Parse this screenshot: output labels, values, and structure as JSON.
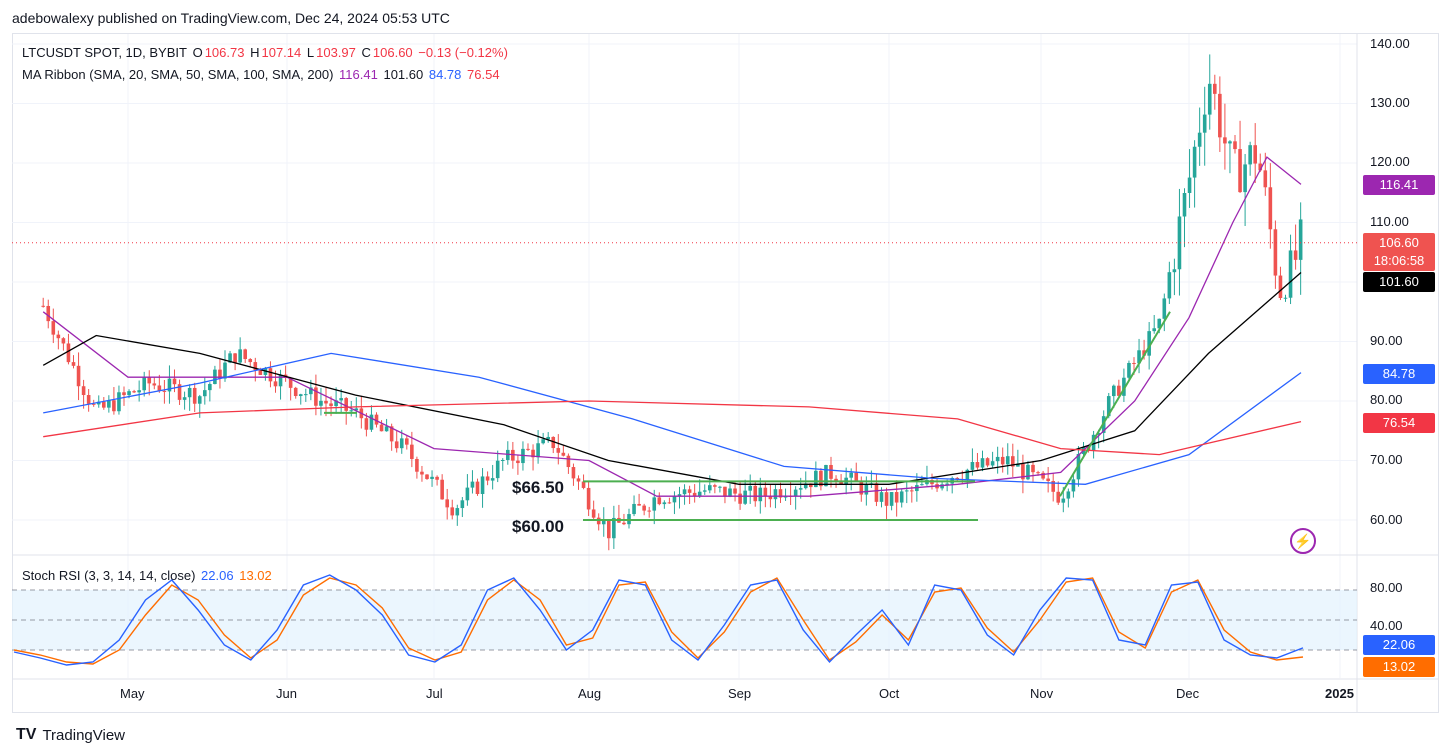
{
  "header": {
    "publisher": "adebowalexy published on TradingView.com, Dec 24, 2024 05:53 UTC"
  },
  "legend": {
    "symbol": "LTCUSDT SPOT, 1D, BYBIT",
    "open_label": "O",
    "open": "106.73",
    "high_label": "H",
    "high": "107.14",
    "low_label": "L",
    "low": "103.97",
    "close_label": "C",
    "close": "106.60",
    "change": "−0.13 (−0.12%)",
    "ma_label": "MA Ribbon (SMA, 20, SMA, 50, SMA, 100, SMA, 200)",
    "ma20": "116.41",
    "ma50": "101.60",
    "ma100": "84.78",
    "ma200": "76.54",
    "stoch_label": "Stoch RSI (3, 3, 14, 14, close)",
    "stoch_k": "22.06",
    "stoch_d": "13.02"
  },
  "price_tags": {
    "last": "106.60",
    "countdown": "18:06:58",
    "ma20": "116.41",
    "ma50": "101.60",
    "ma100": "84.78",
    "ma200": "76.54",
    "stoch_k": "22.06",
    "stoch_d": "13.02"
  },
  "annotations": {
    "level1": "$66.50",
    "level2": "$60.00"
  },
  "colors": {
    "up": "#26a69a",
    "down": "#ef5350",
    "ma20": "#9c27b0",
    "ma50": "#000000",
    "ma100": "#2962ff",
    "ma200": "#f23645",
    "stochK": "#2962ff",
    "stochD": "#ff6d00",
    "support": "#4caf50"
  },
  "brand": "TradingView",
  "chart_data": [
    {
      "type": "candlestick",
      "title": "LTCUSDT SPOT, 1D, BYBIT",
      "ylim": [
        55,
        142
      ],
      "y_ticks": [
        "140.00",
        "130.00",
        "120.00",
        "110.00",
        "90.00",
        "80.00",
        "70.00",
        "60.00"
      ],
      "x_ticks": [
        "May",
        "Jun",
        "Jul",
        "Aug",
        "Sep",
        "Oct",
        "Nov",
        "Dec",
        "2025"
      ],
      "close_path": [
        {
          "x": "Apr 15",
          "y": 96
        },
        {
          "x": "Apr 25",
          "y": 78
        },
        {
          "x": "May 5",
          "y": 83
        },
        {
          "x": "May 15",
          "y": 81
        },
        {
          "x": "May 22",
          "y": 88
        },
        {
          "x": "Jun 1",
          "y": 83
        },
        {
          "x": "Jun 8",
          "y": 80
        },
        {
          "x": "Jun 15",
          "y": 78
        },
        {
          "x": "Jun 25",
          "y": 72
        },
        {
          "x": "Jul 5",
          "y": 62
        },
        {
          "x": "Jul 15",
          "y": 70
        },
        {
          "x": "Jul 25",
          "y": 73
        },
        {
          "x": "Aug 5",
          "y": 58
        },
        {
          "x": "Aug 15",
          "y": 64
        },
        {
          "x": "Aug 25",
          "y": 65
        },
        {
          "x": "Sep 5",
          "y": 64
        },
        {
          "x": "Sep 20",
          "y": 68
        },
        {
          "x": "Oct 1",
          "y": 63
        },
        {
          "x": "Oct 15",
          "y": 68
        },
        {
          "x": "Oct 25",
          "y": 70
        },
        {
          "x": "Nov 5",
          "y": 64
        },
        {
          "x": "Nov 15",
          "y": 80
        },
        {
          "x": "Nov 25",
          "y": 93
        },
        {
          "x": "Dec 1",
          "y": 117
        },
        {
          "x": "Dec 5",
          "y": 135
        },
        {
          "x": "Dec 10",
          "y": 118
        },
        {
          "x": "Dec 15",
          "y": 122
        },
        {
          "x": "Dec 20",
          "y": 97
        },
        {
          "x": "Dec 24",
          "y": 106.6
        }
      ],
      "series": [
        {
          "name": "SMA 20",
          "values": [
            {
              "x": "Apr 15",
              "y": 95
            },
            {
              "x": "May 1",
              "y": 84
            },
            {
              "x": "Jun 1",
              "y": 84
            },
            {
              "x": "Jul 1",
              "y": 72
            },
            {
              "x": "Aug 1",
              "y": 70
            },
            {
              "x": "Aug 15",
              "y": 64
            },
            {
              "x": "Sep 15",
              "y": 64
            },
            {
              "x": "Oct 15",
              "y": 66
            },
            {
              "x": "Nov 5",
              "y": 68
            },
            {
              "x": "Nov 20",
              "y": 80
            },
            {
              "x": "Dec 1",
              "y": 94
            },
            {
              "x": "Dec 10",
              "y": 110
            },
            {
              "x": "Dec 17",
              "y": 121
            },
            {
              "x": "Dec 24",
              "y": 116.41
            }
          ]
        },
        {
          "name": "SMA 50",
          "values": [
            {
              "x": "Apr 15",
              "y": 86
            },
            {
              "x": "Apr 25",
              "y": 91
            },
            {
              "x": "May 15",
              "y": 88
            },
            {
              "x": "Jun 15",
              "y": 81
            },
            {
              "x": "Jul 15",
              "y": 76
            },
            {
              "x": "Aug 5",
              "y": 70
            },
            {
              "x": "Sep 1",
              "y": 66
            },
            {
              "x": "Oct 1",
              "y": 66
            },
            {
              "x": "Nov 1",
              "y": 70
            },
            {
              "x": "Nov 20",
              "y": 75
            },
            {
              "x": "Dec 5",
              "y": 88
            },
            {
              "x": "Dec 24",
              "y": 101.6
            }
          ]
        },
        {
          "name": "SMA 100",
          "values": [
            {
              "x": "Apr 15",
              "y": 78
            },
            {
              "x": "May 15",
              "y": 83
            },
            {
              "x": "Jun 10",
              "y": 88
            },
            {
              "x": "Jul 10",
              "y": 84
            },
            {
              "x": "Aug 10",
              "y": 77
            },
            {
              "x": "Sep 10",
              "y": 69
            },
            {
              "x": "Oct 10",
              "y": 67
            },
            {
              "x": "Nov 10",
              "y": 66
            },
            {
              "x": "Dec 1",
              "y": 71
            },
            {
              "x": "Dec 24",
              "y": 84.78
            }
          ]
        },
        {
          "name": "SMA 200",
          "values": [
            {
              "x": "Apr 15",
              "y": 74
            },
            {
              "x": "May 15",
              "y": 78
            },
            {
              "x": "Jun 15",
              "y": 79
            },
            {
              "x": "Aug 1",
              "y": 80
            },
            {
              "x": "Sep 15",
              "y": 79
            },
            {
              "x": "Oct 15",
              "y": 77
            },
            {
              "x": "Nov 5",
              "y": 72
            },
            {
              "x": "Nov 25",
              "y": 71
            },
            {
              "x": "Dec 24",
              "y": 76.54
            }
          ]
        }
      ],
      "support_levels": [
        66.5,
        60.0
      ]
    },
    {
      "type": "line",
      "title": "Stoch RSI (3, 3, 14, 14, close)",
      "ylim": [
        0,
        100
      ],
      "y_ticks": [
        "80.00",
        "40.00"
      ],
      "band": [
        20,
        80
      ],
      "series": [
        {
          "name": "K",
          "values": [
            18,
            12,
            5,
            8,
            30,
            70,
            90,
            60,
            25,
            10,
            40,
            85,
            95,
            80,
            55,
            15,
            8,
            25,
            80,
            92,
            60,
            20,
            40,
            90,
            85,
            30,
            10,
            45,
            85,
            90,
            40,
            8,
            35,
            60,
            25,
            85,
            80,
            35,
            15,
            60,
            92,
            90,
            30,
            25,
            85,
            88,
            30,
            15,
            12,
            22.06
          ]
        },
        {
          "name": "D",
          "values": [
            20,
            15,
            8,
            6,
            20,
            55,
            85,
            70,
            35,
            12,
            30,
            75,
            92,
            85,
            62,
            22,
            10,
            18,
            70,
            90,
            70,
            25,
            32,
            85,
            88,
            38,
            12,
            38,
            78,
            92,
            50,
            10,
            28,
            55,
            30,
            78,
            82,
            42,
            18,
            50,
            88,
            92,
            38,
            22,
            78,
            90,
            40,
            18,
            10,
            13.02
          ]
        }
      ]
    }
  ]
}
